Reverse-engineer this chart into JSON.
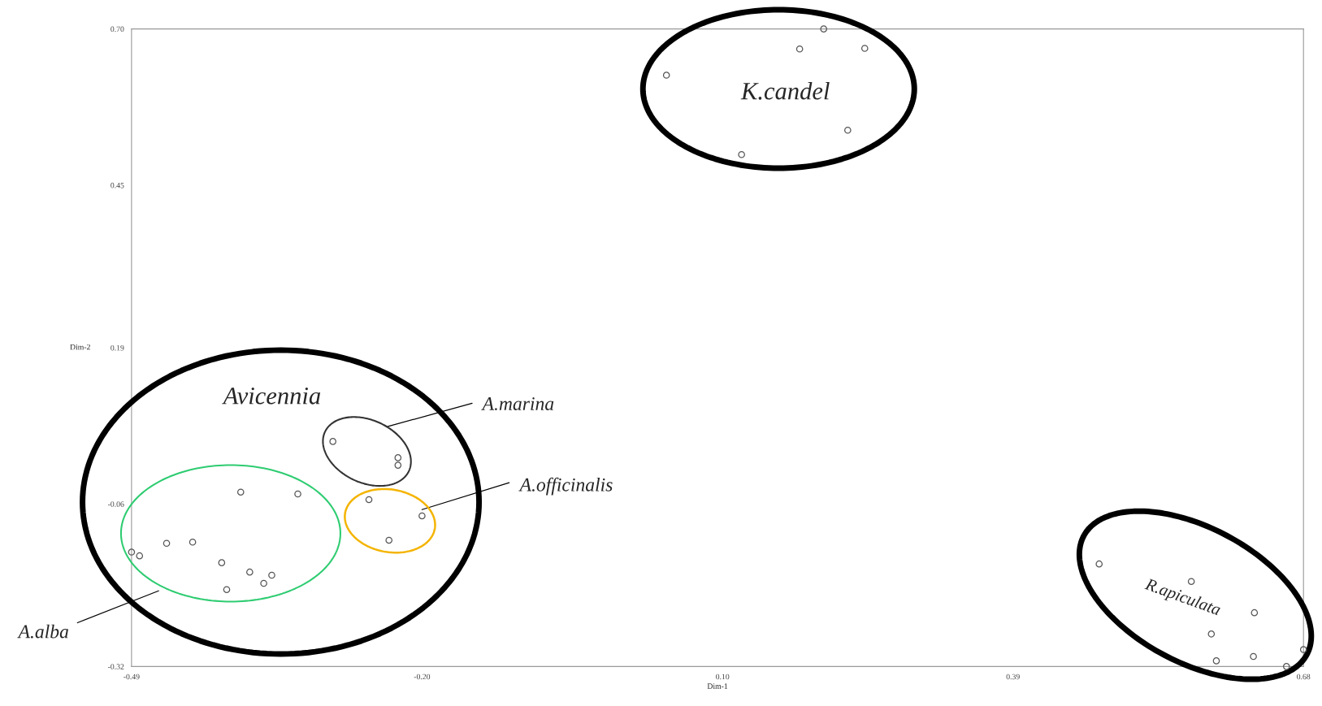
{
  "chart_data": {
    "type": "scatter",
    "xlabel": "Dim-1",
    "ylabel": "Dim-2",
    "x": [
      0.044,
      0.177,
      0.201,
      0.242,
      0.225,
      0.119,
      -0.289,
      -0.224,
      -0.224,
      -0.253,
      -0.2,
      -0.233,
      -0.381,
      -0.324,
      -0.455,
      -0.429,
      -0.4,
      -0.372,
      -0.395,
      -0.358,
      -0.35,
      -0.49,
      -0.482,
      0.476,
      0.568,
      0.631,
      0.588,
      0.593,
      0.63,
      0.663,
      0.68
    ],
    "series": [
      {
        "color": "#555555",
        "values": [
          0.626,
          0.668,
          0.7,
          0.669,
          0.538,
          0.499,
          0.04,
          0.014,
          0.002,
          -0.053,
          -0.079,
          -0.118,
          -0.041,
          -0.044,
          -0.123,
          -0.121,
          -0.154,
          -0.169,
          -0.197,
          -0.187,
          -0.174,
          -0.137,
          -0.143,
          -0.156,
          -0.184,
          -0.234,
          -0.268,
          -0.311,
          -0.304,
          -0.32,
          -0.293
        ]
      }
    ],
    "marker": "circle",
    "xlim": [
      -0.49,
      0.68
    ],
    "ylim": [
      -0.32,
      0.7
    ],
    "xticks": [
      {
        "value": -0.49,
        "label": "-0.49"
      },
      {
        "value": -0.2,
        "label": "-0.20"
      },
      {
        "value": 0.1,
        "label": "0.10"
      },
      {
        "value": 0.39,
        "label": "0.39"
      },
      {
        "value": 0.68,
        "label": "0.68"
      }
    ],
    "yticks": [
      {
        "value": -0.32,
        "label": "-0.32"
      },
      {
        "value": -0.06,
        "label": "-0.06"
      },
      {
        "value": 0.19,
        "label": "0.19"
      },
      {
        "value": 0.45,
        "label": "0.45"
      },
      {
        "value": 0.7,
        "label": "0.70"
      }
    ],
    "grid": false,
    "annotations": [
      "K.candel",
      "Avicennia",
      "A.marina",
      "A.officinalis",
      "A.alba",
      "R.apiculata"
    ]
  }
}
